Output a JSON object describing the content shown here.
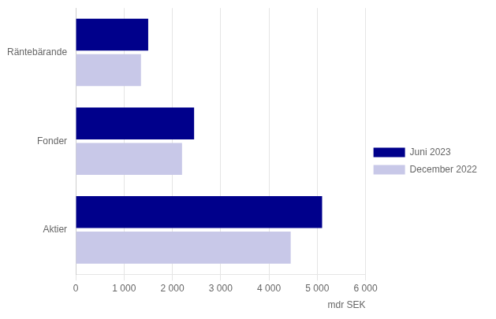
{
  "chart_data": {
    "type": "bar",
    "orientation": "horizontal",
    "categories": [
      "Räntebärande",
      "Fonder",
      "Aktier"
    ],
    "series": [
      {
        "name": "Juni 2023",
        "color": "#00008B",
        "values": [
          1500,
          2450,
          5100
        ]
      },
      {
        "name": "December 2022",
        "color": "#C8C8E8",
        "values": [
          1350,
          2200,
          4450
        ]
      }
    ],
    "xlabel": "mdr SEK",
    "xlim": [
      0,
      6000
    ],
    "xticks": [
      0,
      {
        "value": 1000,
        "label": "1 000"
      },
      {
        "value": 2000,
        "label": "2 000"
      },
      {
        "value": 3000,
        "label": "3 000"
      },
      {
        "value": 4000,
        "label": "4 000"
      },
      {
        "value": 5000,
        "label": "5 000"
      },
      {
        "value": 6000,
        "label": "6 000"
      }
    ],
    "grid": true,
    "legend": "right"
  }
}
